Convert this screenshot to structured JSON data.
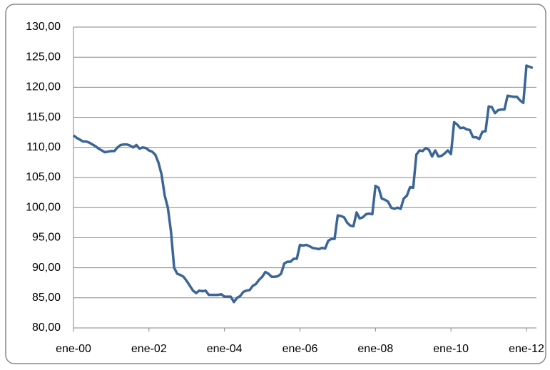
{
  "chart_data": {
    "type": "line",
    "color": "#3b6597",
    "grid": true,
    "ylim": [
      80,
      130
    ],
    "yticks": [
      {
        "value": 80,
        "label": "80,00"
      },
      {
        "value": 85,
        "label": "85,00"
      },
      {
        "value": 90,
        "label": "90,00"
      },
      {
        "value": 95,
        "label": "95,00"
      },
      {
        "value": 100,
        "label": "100,00"
      },
      {
        "value": 105,
        "label": "105,00"
      },
      {
        "value": 110,
        "label": "110,00"
      },
      {
        "value": 115,
        "label": "115,00"
      },
      {
        "value": 120,
        "label": "120,00"
      },
      {
        "value": 125,
        "label": "125,00"
      },
      {
        "value": 130,
        "label": "130,00"
      }
    ],
    "categories": [
      "ene-00",
      null,
      null,
      null,
      null,
      null,
      null,
      null,
      null,
      null,
      null,
      null,
      null,
      null,
      null,
      null,
      null,
      null,
      null,
      null,
      null,
      null,
      null,
      null,
      "ene-02",
      null,
      null,
      null,
      null,
      null,
      null,
      null,
      null,
      null,
      null,
      null,
      null,
      null,
      null,
      null,
      null,
      null,
      null,
      null,
      null,
      null,
      null,
      null,
      "ene-04",
      null,
      null,
      null,
      null,
      null,
      null,
      null,
      null,
      null,
      null,
      null,
      null,
      null,
      null,
      null,
      null,
      null,
      null,
      null,
      null,
      null,
      null,
      null,
      "ene-06",
      null,
      null,
      null,
      null,
      null,
      null,
      null,
      null,
      null,
      null,
      null,
      null,
      null,
      null,
      null,
      null,
      null,
      null,
      null,
      null,
      null,
      null,
      null,
      "ene-08",
      null,
      null,
      null,
      null,
      null,
      null,
      null,
      null,
      null,
      null,
      null,
      null,
      null,
      null,
      null,
      null,
      null,
      null,
      null,
      null,
      null,
      null,
      null,
      "ene-10",
      null,
      null,
      null,
      null,
      null,
      null,
      null,
      null,
      null,
      null,
      null,
      null,
      null,
      null,
      null,
      null,
      null,
      null,
      null,
      null,
      null,
      null,
      null,
      "ene-12",
      null,
      null
    ],
    "values": [
      112,
      111.6,
      111.3,
      111,
      111,
      110.8,
      110.5,
      110.2,
      109.8,
      109.5,
      109.2,
      109.3,
      109.4,
      109.4,
      110,
      110.4,
      110.5,
      110.5,
      110.3,
      110,
      110.4,
      109.8,
      110,
      109.9,
      109.5,
      109.3,
      108.8,
      107.5,
      105.5,
      102,
      100,
      96,
      90,
      89,
      88.8,
      88.5,
      87.8,
      87,
      86.2,
      85.8,
      86.2,
      86.1,
      86.2,
      85.5,
      85.5,
      85.5,
      85.5,
      85.6,
      85.2,
      85.2,
      85.2,
      84.3,
      85,
      85.3,
      86,
      86.2,
      86.3,
      87,
      87.3,
      88,
      88.5,
      89.3,
      89,
      88.5,
      88.5,
      88.6,
      89,
      90.7,
      91,
      91,
      91.5,
      91.5,
      93.8,
      93.7,
      93.8,
      93.6,
      93.3,
      93.2,
      93.1,
      93.3,
      93.2,
      94.5,
      94.8,
      94.8,
      98.7,
      98.6,
      98.4,
      97.5,
      97,
      96.9,
      99.2,
      98.2,
      98.4,
      98.9,
      99,
      98.9,
      103.6,
      103.3,
      101.5,
      101.3,
      101,
      100,
      99.8,
      100,
      99.8,
      101.5,
      102,
      103.4,
      103.3,
      108.8,
      109.5,
      109.4,
      109.9,
      109.6,
      108.5,
      109.5,
      108.5,
      108.6,
      109,
      109.5,
      108.9,
      114.2,
      113.8,
      113.2,
      113.3,
      113,
      112.9,
      111.7,
      111.7,
      111.4,
      112.6,
      112.7,
      116.8,
      116.7,
      115.7,
      116.2,
      116.3,
      116.3,
      118.6,
      118.5,
      118.4,
      118.4,
      117.8,
      117.4,
      123.6,
      123.4,
      123.2
    ]
  }
}
